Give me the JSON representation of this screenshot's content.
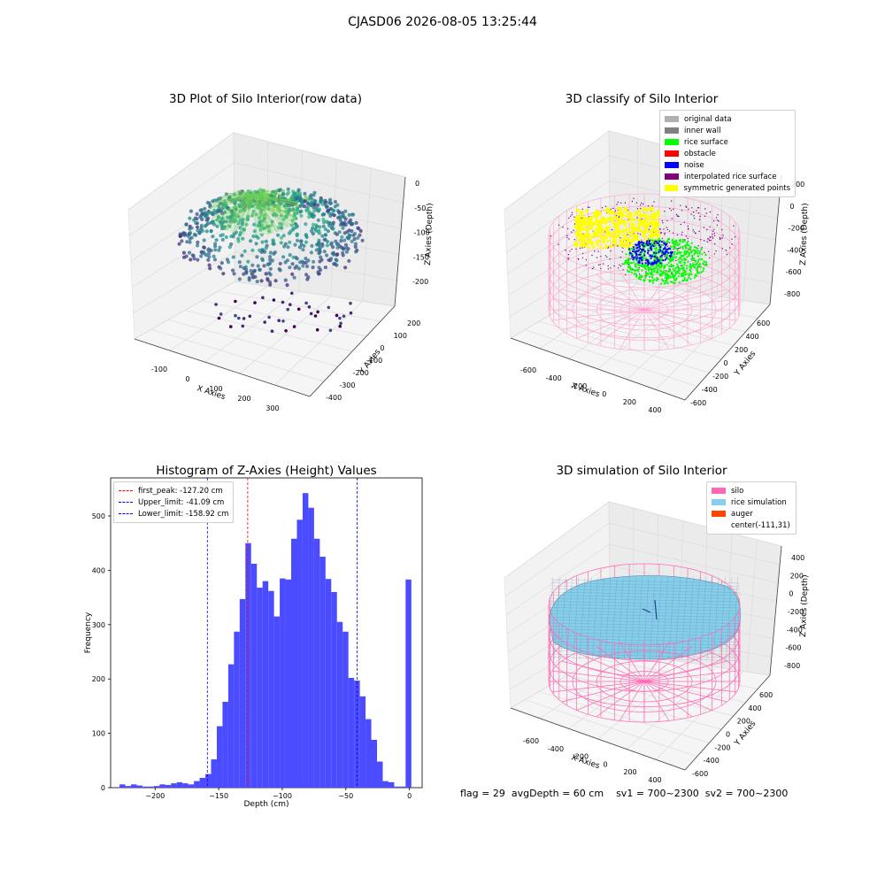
{
  "suptitle": "CJASD06 2026-08-05 13:25:44",
  "panel_raw": {
    "title": "3D Plot of Silo Interior(row data)",
    "xlabel": "X Axies",
    "ylabel": "Y Axies",
    "zlabel": "Z Axies (Depth)",
    "x_ticks": [
      "-100",
      "0",
      "100",
      "200",
      "300"
    ],
    "y_ticks": [
      "200",
      "100",
      "0",
      "-100",
      "-200",
      "-300",
      "-400"
    ],
    "z_ticks": [
      "0",
      "-50",
      "-100",
      "-150",
      "-200"
    ]
  },
  "panel_classify": {
    "title": "3D classify of Silo Interior",
    "xlabel": "X Axies",
    "ylabel": "Y Axies",
    "zlabel": "Z Axies (Depth)",
    "x_ticks": [
      "-600",
      "-400",
      "-200",
      "0",
      "200",
      "400"
    ],
    "y_ticks": [
      "600",
      "400",
      "200",
      "0",
      "-200",
      "-400",
      "-600"
    ],
    "z_ticks": [
      "200",
      "0",
      "-200",
      "-400",
      "-600",
      "-800"
    ],
    "legend": [
      {
        "label": "original data",
        "color": "#b0b0b0"
      },
      {
        "label": "inner wall",
        "color": "#808080"
      },
      {
        "label": "rice surface",
        "color": "#00ff00"
      },
      {
        "label": "obstacle",
        "color": "#ff0000"
      },
      {
        "label": "noise",
        "color": "#0000ff"
      },
      {
        "label": "interpolated rice surface",
        "color": "#800080"
      },
      {
        "label": "symmetric generated points",
        "color": "#ffff00"
      }
    ]
  },
  "panel_sim": {
    "title": "3D simulation of Silo Interior",
    "xlabel": "X Axies",
    "ylabel": "Y Axies",
    "zlabel": "Z Axies (Depth)",
    "x_ticks": [
      "-600",
      "-400",
      "-200",
      "0",
      "200",
      "400"
    ],
    "y_ticks": [
      "600",
      "400",
      "200",
      "0",
      "-200",
      "-400",
      "-600"
    ],
    "z_ticks": [
      "400",
      "200",
      "0",
      "-200",
      "-400",
      "-600",
      "-800"
    ],
    "legend": [
      {
        "label": "silo",
        "color": "#ff69b4"
      },
      {
        "label": "rice simulation",
        "color": "#87ceeb"
      },
      {
        "label": "auger",
        "color": "#ff4500"
      },
      {
        "label": "center(-111,31)",
        "color": ""
      }
    ]
  },
  "status": {
    "flag": "flag = 29",
    "avg": "avgDepth = 60 cm",
    "sv1": "sv1 = 700~2300",
    "sv2": "sv2 = 700~2300"
  },
  "chart_data": [
    {
      "type": "scatter",
      "title": "3D Plot of Silo Interior(row data)",
      "note_xyz": "3D scatter",
      "xlabel": "X Axies",
      "ylabel": "Y Axies",
      "zlabel": "Z Axies (Depth)",
      "xlim": [
        -150,
        350
      ],
      "ylim": [
        -450,
        250
      ],
      "zlim": [
        -220,
        10
      ]
    },
    {
      "type": "scatter",
      "title": "3D classify of Silo Interior",
      "xlabel": "X Axies",
      "ylabel": "Y Axies",
      "zlabel": "Z Axies (Depth)",
      "xlim": [
        -700,
        500
      ],
      "ylim": [
        -650,
        650
      ],
      "zlim": [
        -900,
        300
      ]
    },
    {
      "type": "bar",
      "title": "Histogram of Z-Axies (Height) Values",
      "xlabel": "Depth (cm)",
      "ylabel": "Frequency",
      "xlim": [
        -235,
        10
      ],
      "ylim": [
        0,
        570
      ],
      "x_ticks": [
        -200,
        -150,
        -100,
        -50,
        0
      ],
      "y_ticks": [
        0,
        100,
        200,
        300,
        400,
        500
      ],
      "bin_edges_start": -228,
      "bin_width": 4.5,
      "values": [
        6,
        3,
        6,
        4,
        2,
        2,
        3,
        6,
        5,
        8,
        10,
        8,
        6,
        12,
        18,
        25,
        52,
        113,
        158,
        227,
        287,
        347,
        450,
        412,
        368,
        380,
        362,
        315,
        385,
        383,
        458,
        493,
        542,
        515,
        458,
        425,
        384,
        360,
        305,
        287,
        202,
        197,
        168,
        126,
        88,
        48,
        12,
        10,
        2,
        2,
        383
      ],
      "vlines": [
        {
          "label": "first_peak: -127.20 cm",
          "x": -127.2,
          "color": "#ff0000"
        },
        {
          "label": "Upper_limit: -41.09 cm",
          "x": -41.09,
          "color": "#0000ff"
        },
        {
          "label": "Lower_limit: -158.92 cm",
          "x": -158.92,
          "color": "#0000ff"
        }
      ],
      "bar_color": "#4b4bff"
    },
    {
      "type": "scatter",
      "title": "3D simulation of Silo Interior",
      "xlabel": "X Axies",
      "ylabel": "Y Axies",
      "zlabel": "Z Axies (Depth)",
      "xlim": [
        -700,
        500
      ],
      "ylim": [
        -650,
        650
      ],
      "zlim": [
        -900,
        450
      ]
    }
  ]
}
